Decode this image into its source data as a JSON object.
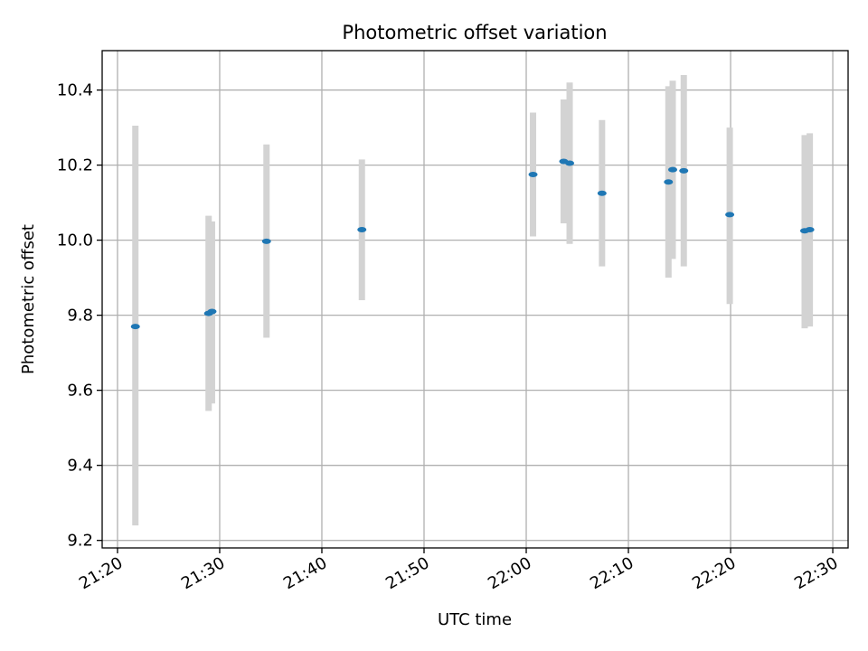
{
  "chart_data": {
    "type": "scatter",
    "title": "Photometric offset variation",
    "xlabel": "UTC time",
    "ylabel": "Photometric offset",
    "xlim": [
      "21:18:30",
      "22:31:30"
    ],
    "ylim": [
      9.18,
      10.505
    ],
    "x_ticks": [
      "21:20",
      "21:30",
      "21:40",
      "21:50",
      "22:00",
      "22:10",
      "22:20",
      "22:30"
    ],
    "y_ticks": [
      "9.2",
      "9.4",
      "9.6",
      "9.8",
      "10.0",
      "10.2",
      "10.4"
    ],
    "grid": true,
    "series": [
      {
        "marker_color": "#1f77b4",
        "errorbar_color": "#d3d3d3",
        "points": [
          {
            "x": "21:21:45",
            "y": 9.77,
            "ylow": 9.24,
            "yhigh": 10.305
          },
          {
            "x": "21:28:55",
            "y": 9.805,
            "ylow": 9.545,
            "yhigh": 10.065
          },
          {
            "x": "21:29:15",
            "y": 9.81,
            "ylow": 9.565,
            "yhigh": 10.05
          },
          {
            "x": "21:34:35",
            "y": 9.997,
            "ylow": 9.74,
            "yhigh": 10.255
          },
          {
            "x": "21:43:55",
            "y": 10.028,
            "ylow": 9.84,
            "yhigh": 10.215
          },
          {
            "x": "22:00:40",
            "y": 10.175,
            "ylow": 10.01,
            "yhigh": 10.34
          },
          {
            "x": "22:03:40",
            "y": 10.21,
            "ylow": 10.045,
            "yhigh": 10.375
          },
          {
            "x": "22:04:15",
            "y": 10.205,
            "ylow": 9.99,
            "yhigh": 10.42
          },
          {
            "x": "22:07:25",
            "y": 10.125,
            "ylow": 9.93,
            "yhigh": 10.32
          },
          {
            "x": "22:13:55",
            "y": 10.155,
            "ylow": 9.9,
            "yhigh": 10.41
          },
          {
            "x": "22:14:20",
            "y": 10.188,
            "ylow": 9.95,
            "yhigh": 10.425
          },
          {
            "x": "22:15:25",
            "y": 10.185,
            "ylow": 9.93,
            "yhigh": 10.44
          },
          {
            "x": "22:19:55",
            "y": 10.068,
            "ylow": 9.83,
            "yhigh": 10.3
          },
          {
            "x": "22:27:15",
            "y": 10.025,
            "ylow": 9.765,
            "yhigh": 10.28
          },
          {
            "x": "22:27:45",
            "y": 10.028,
            "ylow": 9.77,
            "yhigh": 10.285
          }
        ]
      }
    ]
  }
}
